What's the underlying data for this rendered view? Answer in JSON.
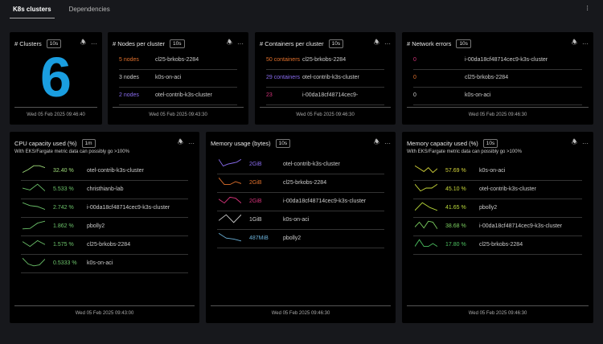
{
  "tabs": [
    "K8s clusters",
    "Dependencies"
  ],
  "clusters": {
    "title": "# Clusters",
    "badge": "10s",
    "value": "6",
    "footer": "Wed 05 Feb 2025 09:46:40"
  },
  "nodes": {
    "title": "# Nodes per cluster",
    "badge": "10s",
    "footer": "Wed 05 Feb 2025 09:43:30",
    "rows": [
      {
        "value": "5 nodes",
        "name": "cl25-brkobs-2284",
        "color": "#e0702c"
      },
      {
        "value": "3 nodes",
        "name": "k0s-on-aci",
        "color": "#cccccc"
      },
      {
        "value": "2 nodes",
        "name": "otel-contrib-k3s-cluster",
        "color": "#8a6cf0"
      }
    ]
  },
  "containers": {
    "title": "# Containers per cluster",
    "badge": "10s",
    "footer": "Wed 05 Feb 2025 09:46:30",
    "rows": [
      {
        "value": "50 containers",
        "name": "cl25-brkobs-2284",
        "color": "#e0702c"
      },
      {
        "value": "29 containers",
        "name": "otel-contrib-k3s-cluster",
        "color": "#8a6cf0"
      },
      {
        "value": "23",
        "name": "i-00da18cf48714cec9-",
        "color": "#d6337a"
      }
    ]
  },
  "network": {
    "title": "# Network errors",
    "badge": "10s",
    "footer": "Wed 05 Feb 2025 09:46:30",
    "rows": [
      {
        "value": "0",
        "name": "i-00da18cf48714cec9-k3s-cluster",
        "color": "#d6337a"
      },
      {
        "value": "0",
        "name": "cl25-brkobs-2284",
        "color": "#e0702c"
      },
      {
        "value": "0",
        "name": "k0s-on-aci",
        "color": "#cccccc"
      }
    ]
  },
  "cpu": {
    "title": "CPU capacity used (%)",
    "badge": "1m",
    "subtitle": "With EKS/Fargate metric data can possibly go >100%",
    "footer": "Wed 05 Feb 2025 09:43:00",
    "rows": [
      {
        "value": "32.40 %",
        "name": "otel-contrib-k3s-cluster",
        "color": "#9fdc7a",
        "spark": [
          0.2,
          0.5,
          0.9,
          0.9,
          0.7
        ]
      },
      {
        "value": "5.533 %",
        "name": "christhianb-lab",
        "color": "#6cc36a",
        "spark": [
          0.5,
          0.3,
          0.9,
          0.2
        ]
      },
      {
        "value": "2.742 %",
        "name": "i-00da18cf48714cec9-k3s-cluster",
        "color": "#6cc36a",
        "spark": [
          0.9,
          0.6,
          0.5,
          0.2
        ]
      },
      {
        "value": "1.862 %",
        "name": "pbolly2",
        "color": "#6cc36a",
        "spark": [
          0.1,
          0.15,
          0.7,
          0.9
        ]
      },
      {
        "value": "1.575 %",
        "name": "cl25-brkobs-2284",
        "color": "#6cc36a",
        "spark": [
          0.7,
          0.2,
          0.8,
          0.4
        ]
      },
      {
        "value": "0.5333 %",
        "name": "k0s-on-aci",
        "color": "#6cc36a",
        "spark": [
          0.9,
          0.3,
          0.1,
          0.2,
          0.8
        ]
      }
    ]
  },
  "memory": {
    "title": "Memory usage (bytes)",
    "badge": "10s",
    "footer": "Wed 05 Feb 2025 09:46:30",
    "rows": [
      {
        "value": "2GiB",
        "name": "otel-contrib-k3s-cluster",
        "color": "#8a6cf0",
        "spark": [
          0.9,
          0.2,
          0.4,
          0.5,
          0.6,
          0.9
        ]
      },
      {
        "value": "2GiB",
        "name": "cl25-brkobs-2284",
        "color": "#e0702c",
        "spark": [
          0.9,
          0.2,
          0.2,
          0.5,
          0.3
        ]
      },
      {
        "value": "2GiB",
        "name": "i-00da18cf48714cec9-k3s-cluster",
        "color": "#d6337a",
        "spark": [
          0.6,
          0.2,
          0.8,
          0.7,
          0.2
        ]
      },
      {
        "value": "1GiB",
        "name": "k0s-on-aci",
        "color": "#cccccc",
        "spark": [
          0.3,
          0.9,
          0.1,
          0.9
        ]
      },
      {
        "value": "487MiB",
        "name": "pbolly2",
        "color": "#6ab0d8",
        "spark": [
          0.9,
          0.4,
          0.3,
          0.1
        ]
      }
    ]
  },
  "memcap": {
    "title": "Memory capacity used (%)",
    "badge": "10s",
    "subtitle": "With EKS/Fargate metric data can possibly go >100%",
    "footer": "Wed 05 Feb 2025 09:46:30",
    "rows": [
      {
        "value": "57.69 %",
        "name": "k0s-on-aci",
        "color": "#d4d43a",
        "spark": [
          0.9,
          0.6,
          0.3,
          0.7,
          0.2,
          0.6
        ]
      },
      {
        "value": "45.10 %",
        "name": "otel-contrib-k3s-cluster",
        "color": "#c8d83a",
        "spark": [
          0.9,
          0.2,
          0.5,
          0.5,
          0.9
        ]
      },
      {
        "value": "41.65 %",
        "name": "pbolly2",
        "color": "#b8d83a",
        "spark": [
          0.1,
          0.9,
          0.4,
          0.1
        ]
      },
      {
        "value": "38.68 %",
        "name": "i-00da18cf48714cec9-k3s-cluster",
        "color": "#7cd060",
        "spark": [
          0.3,
          0.8,
          0.2,
          0.9,
          0.8,
          0.1
        ]
      },
      {
        "value": "17.80 %",
        "name": "cl25-brkobs-2284",
        "color": "#4cc060",
        "spark": [
          0.2,
          0.9,
          0.2,
          0.2,
          0.5,
          0.2
        ]
      }
    ]
  }
}
